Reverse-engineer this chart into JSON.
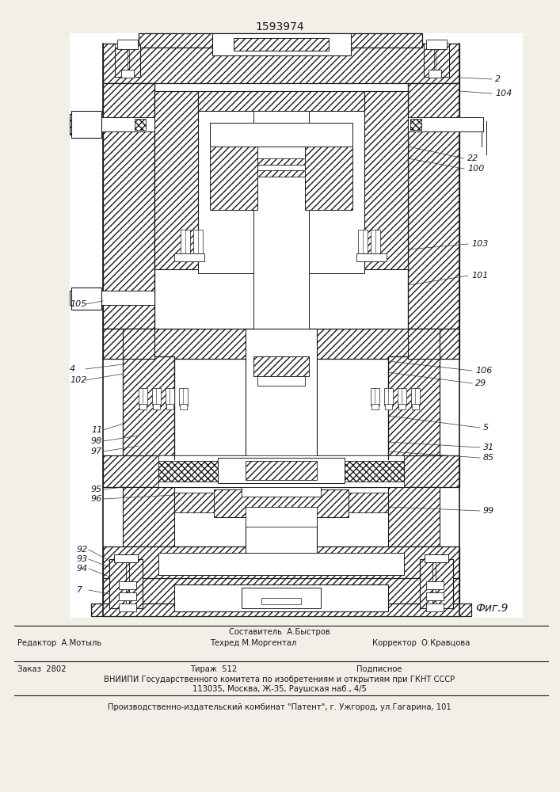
{
  "patent_number": "1593974",
  "fig_label": "Фиг.9",
  "bg_color": "#e8e5e0",
  "drawing_bg": "#f2efe9",
  "line_color": "#1a1a1a",
  "title_fontsize": 10,
  "label_fontsize": 8,
  "italic_label_fontsize": 8,
  "small_fontsize": 7.2,
  "footer_sestavitel": "Составитель  А.Быстров",
  "footer_editor": "Редактор  А.Мотыль",
  "footer_tekhred": "Техред М.Моргентал",
  "footer_korrektor": "Корректор  О.Кравцова",
  "footer_zakaz": "Заказ  2802",
  "footer_tirazh": "Тираж  512",
  "footer_podpisnoe": "Подписное",
  "footer_vniip1": "ВНИИПИ Государственного комитета по изобретениям и открытиям при ГКНТ СССР",
  "footer_vniip2": "113035, Москва, Ж-35, Раушская наб., 4/5",
  "footer_proizvod": "Производственно-издательский комбинат \"Патент\", г. Ужгород, ул.Гагарина, 101"
}
